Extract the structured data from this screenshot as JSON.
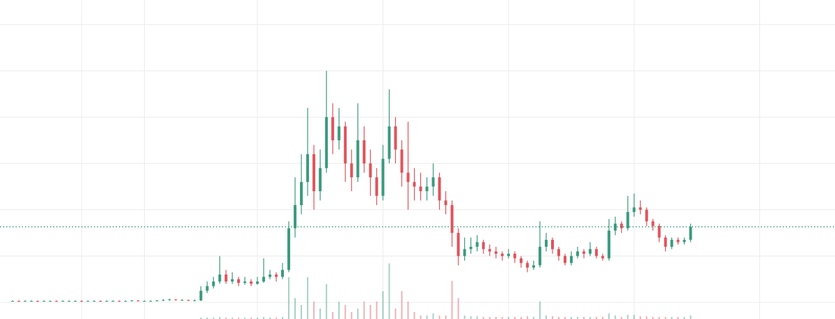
{
  "chart_data": {
    "type": "candlestick",
    "up_color": "#3a9a7e",
    "down_color": "#e0535b",
    "grid": true,
    "xlim": [
      -2,
      131
    ],
    "xticks": [
      11,
      21,
      39,
      59,
      79,
      99,
      119
    ],
    "ylim": [
      -0.36,
      6.53
    ],
    "yticks": [
      0,
      1,
      2,
      3,
      4,
      5,
      6
    ],
    "vlim": [
      0,
      100
    ],
    "last_price": 1.63,
    "ohlc": [
      [
        0.03,
        0.04,
        0.02,
        0.03
      ],
      [
        0.03,
        0.04,
        0.01,
        0.02
      ],
      [
        0.02,
        0.04,
        0.02,
        0.03
      ],
      [
        0.03,
        0.04,
        0.02,
        0.03
      ],
      [
        0.03,
        0.04,
        0.01,
        0.02
      ],
      [
        0.02,
        0.04,
        0.02,
        0.03
      ],
      [
        0.03,
        0.04,
        0.02,
        0.03
      ],
      [
        0.03,
        0.04,
        0.01,
        0.02
      ],
      [
        0.02,
        0.04,
        0.02,
        0.03
      ],
      [
        0.03,
        0.04,
        0.02,
        0.03
      ],
      [
        0.03,
        0.04,
        0.02,
        0.03
      ],
      [
        0.03,
        0.04,
        0.01,
        0.02
      ],
      [
        0.02,
        0.04,
        0.02,
        0.03
      ],
      [
        0.03,
        0.04,
        0.02,
        0.03
      ],
      [
        0.03,
        0.04,
        0.01,
        0.02
      ],
      [
        0.02,
        0.04,
        0.02,
        0.03
      ],
      [
        0.03,
        0.04,
        0.02,
        0.03
      ],
      [
        0.03,
        0.04,
        0.01,
        0.02
      ],
      [
        0.02,
        0.04,
        0.02,
        0.03
      ],
      [
        0.03,
        0.05,
        0.02,
        0.04
      ],
      [
        0.04,
        0.05,
        0.02,
        0.03
      ],
      [
        0.03,
        0.04,
        0.02,
        0.03
      ],
      [
        0.03,
        0.04,
        0.02,
        0.03
      ],
      [
        0.03,
        0.05,
        0.02,
        0.04
      ],
      [
        0.04,
        0.07,
        0.03,
        0.05
      ],
      [
        0.05,
        0.08,
        0.04,
        0.06
      ],
      [
        0.06,
        0.07,
        0.04,
        0.05
      ],
      [
        0.05,
        0.07,
        0.04,
        0.05
      ],
      [
        0.05,
        0.06,
        0.03,
        0.04
      ],
      [
        0.04,
        0.06,
        0.03,
        0.04
      ],
      [
        0.04,
        0.35,
        0.03,
        0.25
      ],
      [
        0.25,
        0.45,
        0.2,
        0.35
      ],
      [
        0.35,
        0.55,
        0.3,
        0.45
      ],
      [
        0.45,
        1.0,
        0.4,
        0.6
      ],
      [
        0.6,
        0.7,
        0.4,
        0.45
      ],
      [
        0.45,
        0.65,
        0.4,
        0.5
      ],
      [
        0.5,
        0.55,
        0.35,
        0.42
      ],
      [
        0.42,
        0.55,
        0.38,
        0.45
      ],
      [
        0.45,
        0.5,
        0.35,
        0.4
      ],
      [
        0.4,
        0.55,
        0.38,
        0.45
      ],
      [
        0.45,
        0.95,
        0.42,
        0.55
      ],
      [
        0.55,
        0.7,
        0.5,
        0.6
      ],
      [
        0.6,
        0.65,
        0.45,
        0.55
      ],
      [
        0.55,
        0.85,
        0.5,
        0.7
      ],
      [
        0.7,
        1.75,
        0.65,
        1.6
      ],
      [
        1.6,
        2.7,
        1.4,
        2.1
      ],
      [
        2.1,
        3.2,
        1.9,
        2.6
      ],
      [
        2.6,
        4.2,
        2.3,
        3.2
      ],
      [
        3.2,
        3.4,
        2.0,
        2.4
      ],
      [
        2.4,
        3.3,
        2.2,
        2.9
      ],
      [
        2.9,
        5.0,
        2.8,
        4.0
      ],
      [
        4.0,
        4.3,
        3.2,
        3.5
      ],
      [
        3.5,
        4.2,
        3.3,
        3.8
      ],
      [
        3.8,
        3.9,
        2.6,
        3.0
      ],
      [
        3.0,
        3.3,
        2.4,
        2.7
      ],
      [
        2.7,
        4.3,
        2.6,
        3.5
      ],
      [
        3.5,
        3.8,
        2.8,
        3.0
      ],
      [
        3.0,
        3.3,
        2.3,
        2.7
      ],
      [
        2.7,
        2.9,
        2.1,
        2.3
      ],
      [
        2.3,
        3.4,
        2.2,
        3.1
      ],
      [
        3.1,
        4.6,
        3.0,
        3.8
      ],
      [
        3.8,
        4.0,
        3.0,
        3.3
      ],
      [
        3.3,
        3.5,
        2.5,
        2.8
      ],
      [
        2.8,
        3.9,
        2.0,
        2.6
      ],
      [
        2.6,
        2.9,
        2.2,
        2.5
      ],
      [
        2.5,
        2.8,
        2.2,
        2.4
      ],
      [
        2.4,
        2.7,
        2.2,
        2.5
      ],
      [
        2.5,
        3.0,
        2.3,
        2.7
      ],
      [
        2.7,
        2.8,
        2.0,
        2.2
      ],
      [
        2.2,
        2.4,
        1.9,
        2.1
      ],
      [
        2.1,
        2.2,
        1.2,
        1.5
      ],
      [
        1.5,
        1.6,
        0.8,
        1.0
      ],
      [
        1.0,
        1.4,
        0.9,
        1.15
      ],
      [
        1.15,
        1.4,
        1.05,
        1.2
      ],
      [
        1.2,
        1.45,
        1.1,
        1.3
      ],
      [
        1.3,
        1.35,
        1.05,
        1.15
      ],
      [
        1.15,
        1.25,
        1.0,
        1.1
      ],
      [
        1.1,
        1.2,
        0.95,
        1.05
      ],
      [
        1.05,
        1.1,
        0.9,
        1.0
      ],
      [
        1.0,
        1.15,
        0.95,
        1.05
      ],
      [
        1.05,
        1.1,
        0.85,
        0.95
      ],
      [
        0.95,
        1.0,
        0.75,
        0.85
      ],
      [
        0.85,
        0.9,
        0.65,
        0.75
      ],
      [
        0.75,
        0.9,
        0.7,
        0.8
      ],
      [
        0.8,
        1.75,
        0.75,
        1.2
      ],
      [
        1.2,
        1.5,
        1.1,
        1.35
      ],
      [
        1.35,
        1.4,
        1.05,
        1.15
      ],
      [
        1.15,
        1.2,
        0.9,
        1.0
      ],
      [
        1.0,
        1.05,
        0.8,
        0.85
      ],
      [
        0.85,
        1.1,
        0.8,
        1.0
      ],
      [
        1.0,
        1.2,
        0.95,
        1.1
      ],
      [
        1.1,
        1.15,
        0.95,
        1.05
      ],
      [
        1.05,
        1.3,
        1.0,
        1.15
      ],
      [
        1.15,
        1.2,
        0.95,
        1.0
      ],
      [
        1.0,
        1.05,
        0.9,
        0.95
      ],
      [
        0.95,
        1.8,
        0.9,
        1.55
      ],
      [
        1.55,
        1.85,
        1.45,
        1.7
      ],
      [
        1.7,
        1.75,
        1.5,
        1.6
      ],
      [
        1.6,
        2.3,
        1.55,
        1.95
      ],
      [
        1.95,
        2.35,
        1.85,
        2.05
      ],
      [
        2.05,
        2.2,
        1.9,
        2.0
      ],
      [
        2.0,
        2.05,
        1.65,
        1.75
      ],
      [
        1.75,
        1.8,
        1.55,
        1.65
      ],
      [
        1.65,
        1.7,
        1.3,
        1.4
      ],
      [
        1.4,
        1.45,
        1.1,
        1.2
      ],
      [
        1.2,
        1.4,
        1.15,
        1.35
      ],
      [
        1.35,
        1.4,
        1.25,
        1.3
      ],
      [
        1.3,
        1.4,
        1.25,
        1.35
      ],
      [
        1.35,
        1.7,
        1.3,
        1.63
      ]
    ],
    "volume": [
      0,
      0,
      0,
      0,
      0,
      0,
      0,
      0,
      0,
      0,
      0,
      0,
      0,
      0,
      0,
      0,
      0,
      0,
      0,
      0,
      0,
      0,
      0,
      0,
      0,
      0,
      0,
      0,
      0,
      0,
      2,
      2,
      2,
      3,
      2,
      2,
      2,
      2,
      2,
      2,
      3,
      2,
      2,
      3,
      60,
      30,
      20,
      60,
      25,
      15,
      50,
      10,
      25,
      20,
      10,
      15,
      25,
      20,
      25,
      40,
      80,
      15,
      40,
      25,
      10,
      5,
      5,
      8,
      5,
      5,
      55,
      30,
      5,
      4,
      4,
      3,
      3,
      3,
      3,
      3,
      3,
      3,
      4,
      3,
      25,
      5,
      4,
      3,
      3,
      3,
      3,
      3,
      3,
      3,
      3,
      8,
      5,
      3,
      6,
      6,
      4,
      4,
      3,
      3,
      3,
      3,
      3,
      3,
      5
    ]
  }
}
